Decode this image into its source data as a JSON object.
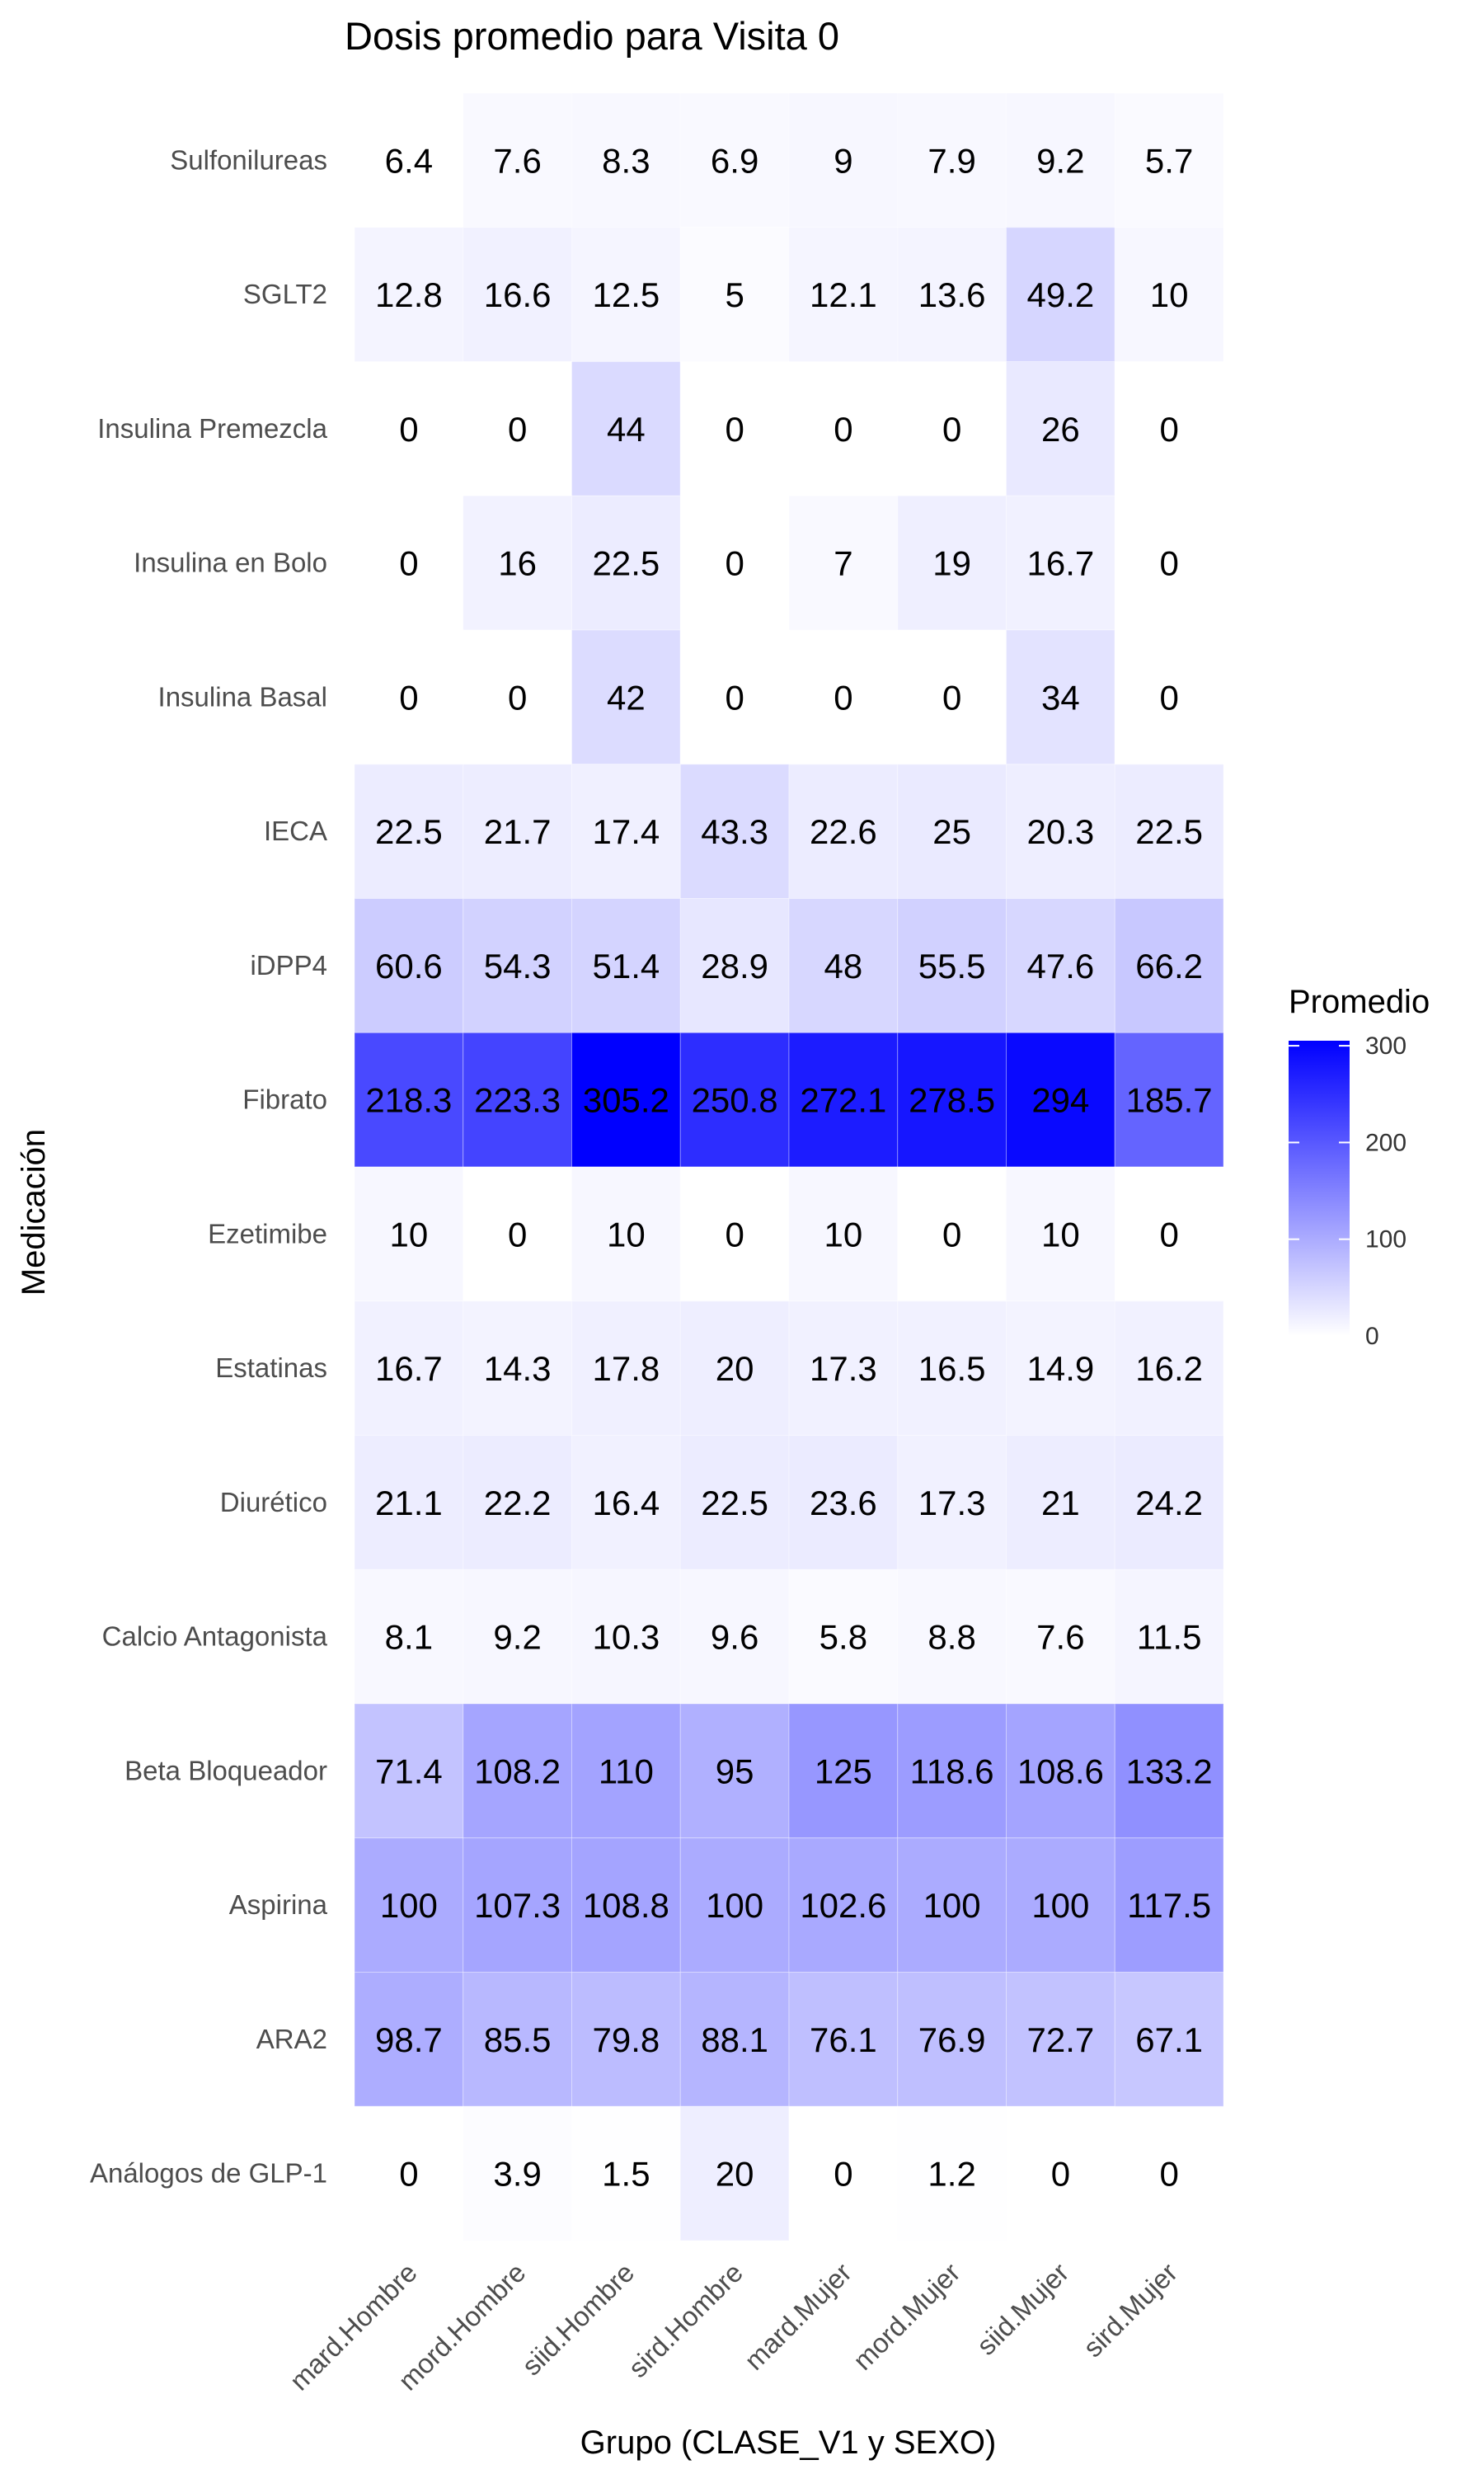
{
  "chart_data": {
    "type": "heatmap",
    "title": "Dosis promedio para Visita 0",
    "xlabel": "Grupo (CLASE_V1 y SEXO)",
    "ylabel": "Medicación",
    "x_categories": [
      "mard.Hombre",
      "mord.Hombre",
      "siid.Hombre",
      "sird.Hombre",
      "mard.Mujer",
      "mord.Mujer",
      "siid.Mujer",
      "sird.Mujer"
    ],
    "y_categories": [
      "Sulfonilureas",
      "SGLT2",
      "Insulina Premezcla",
      "Insulina en Bolo",
      "Insulina Basal",
      "IECA",
      "iDPP4",
      "Fibrato",
      "Ezetimibe",
      "Estatinas",
      "Diurético",
      "Calcio Antagonista",
      "Beta Bloqueador",
      "Aspirina",
      "ARA2",
      "Análogos de GLP-1"
    ],
    "values": [
      [
        6.4,
        7.6,
        8.3,
        6.9,
        9,
        7.9,
        9.2,
        5.7
      ],
      [
        12.8,
        16.6,
        12.5,
        5,
        12.1,
        13.6,
        49.2,
        10
      ],
      [
        0,
        0,
        44,
        0,
        0,
        0,
        26,
        0
      ],
      [
        0,
        16,
        22.5,
        0,
        7,
        19,
        16.7,
        0
      ],
      [
        0,
        0,
        42,
        0,
        0,
        0,
        34,
        0
      ],
      [
        22.5,
        21.7,
        17.4,
        43.3,
        22.6,
        25,
        20.3,
        22.5
      ],
      [
        60.6,
        54.3,
        51.4,
        28.9,
        48,
        55.5,
        47.6,
        66.2
      ],
      [
        218.3,
        223.3,
        305.2,
        250.8,
        272.1,
        278.5,
        294,
        185.7
      ],
      [
        10,
        0,
        10,
        0,
        10,
        0,
        10,
        0
      ],
      [
        16.7,
        14.3,
        17.8,
        20,
        17.3,
        16.5,
        14.9,
        16.2
      ],
      [
        21.1,
        22.2,
        16.4,
        22.5,
        23.6,
        17.3,
        21,
        24.2
      ],
      [
        8.1,
        9.2,
        10.3,
        9.6,
        5.8,
        8.8,
        7.6,
        11.5
      ],
      [
        71.4,
        108.2,
        110,
        95,
        125,
        118.6,
        108.6,
        133.2
      ],
      [
        100,
        107.3,
        108.8,
        100,
        102.6,
        100,
        100,
        117.5
      ],
      [
        98.7,
        85.5,
        79.8,
        88.1,
        76.1,
        76.9,
        72.7,
        67.1
      ],
      [
        0,
        3.9,
        1.5,
        20,
        0,
        1.2,
        0,
        0
      ]
    ],
    "missing_cells": [
      [
        0,
        0
      ],
      [
        15,
        7
      ]
    ],
    "legend": {
      "title": "Promedio",
      "ticks": [
        0,
        100,
        200,
        300
      ],
      "range": [
        0,
        305.2
      ],
      "placement": "right"
    },
    "colors": {
      "low": "#ffffff",
      "high": "#0000ff"
    },
    "grid": false
  }
}
